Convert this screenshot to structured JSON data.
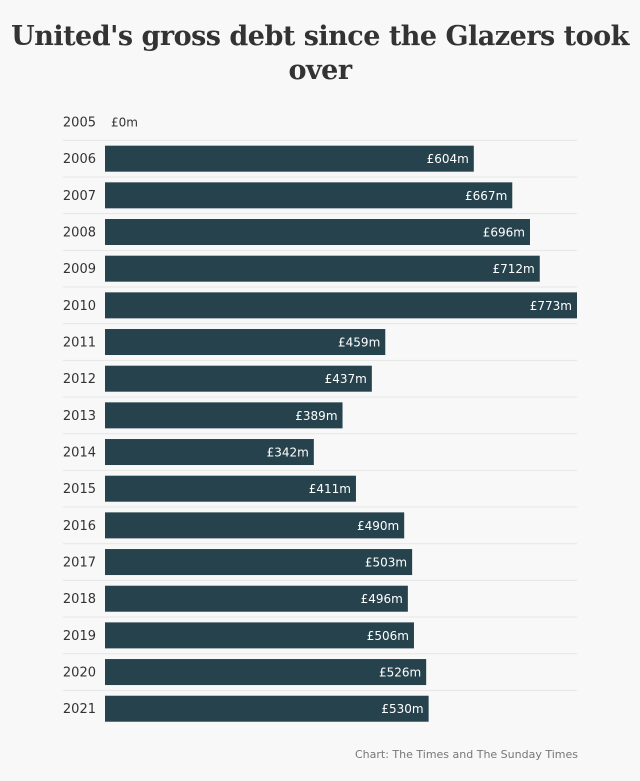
{
  "chart_data": {
    "type": "bar",
    "orientation": "horizontal",
    "title": "United's gross debt since the Glazers took over",
    "categories": [
      "2005",
      "2006",
      "2007",
      "2008",
      "2009",
      "2010",
      "2011",
      "2012",
      "2013",
      "2014",
      "2015",
      "2016",
      "2017",
      "2018",
      "2019",
      "2020",
      "2021"
    ],
    "values": [
      0,
      604,
      667,
      696,
      712,
      773,
      459,
      437,
      389,
      342,
      411,
      490,
      503,
      496,
      506,
      526,
      530
    ],
    "data_labels": [
      "£0m",
      "£604m",
      "£667m",
      "£696m",
      "£712m",
      "£773m",
      "£459m",
      "£437m",
      "£389m",
      "£342m",
      "£411m",
      "£490m",
      "£503m",
      "£496m",
      "£506m",
      "£526m",
      "£530m"
    ],
    "unit": "£m",
    "xlim": [
      0,
      773
    ],
    "grid": false,
    "bar_color": "#26424d",
    "label_color": "#ffffff",
    "source": "Chart: The Times and The Sunday Times"
  }
}
